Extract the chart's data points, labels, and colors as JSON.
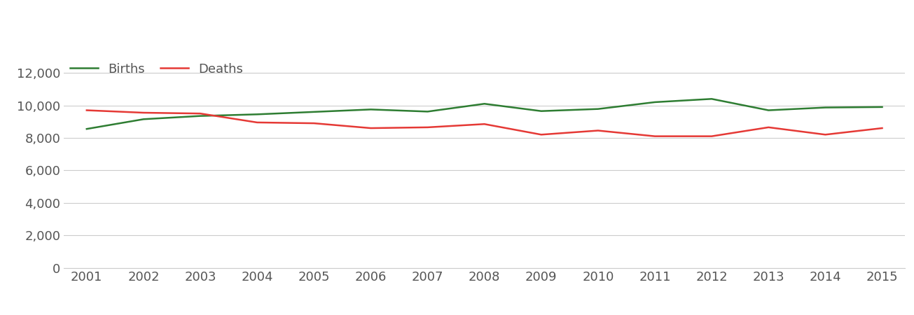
{
  "years": [
    2001,
    2002,
    2003,
    2004,
    2005,
    2006,
    2007,
    2008,
    2009,
    2010,
    2011,
    2012,
    2013,
    2014,
    2015
  ],
  "births": [
    8550,
    9150,
    9350,
    9450,
    9600,
    9750,
    9620,
    10100,
    9650,
    9780,
    10200,
    10400,
    9700,
    9870,
    9900
  ],
  "deaths": [
    9700,
    9550,
    9500,
    8950,
    8900,
    8600,
    8650,
    8850,
    8200,
    8450,
    8100,
    8100,
    8650,
    8200,
    8600
  ],
  "births_color": "#2e7d32",
  "deaths_color": "#e53935",
  "ylim": [
    0,
    13000
  ],
  "yticks": [
    0,
    2000,
    4000,
    6000,
    8000,
    10000,
    12000
  ],
  "background_color": "#ffffff",
  "grid_color": "#cccccc",
  "line_width": 1.8,
  "legend_labels": [
    "Births",
    "Deaths"
  ],
  "tick_color": "#555555",
  "tick_fontsize": 13
}
